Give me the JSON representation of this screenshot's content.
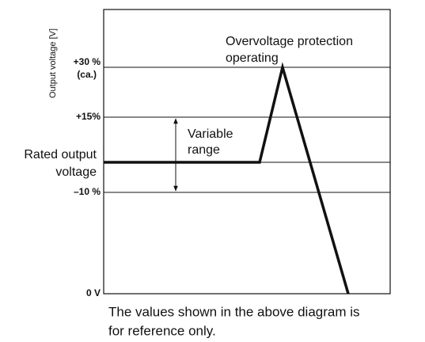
{
  "axis_title": "Output voltage [V]",
  "levels": [
    {
      "label": "+30 %",
      "note": "(ca.)"
    },
    {
      "label": "+15%"
    },
    {
      "label": "–10 %"
    },
    {
      "label": "0 V"
    }
  ],
  "rated_label": [
    "Rated output",
    "voltage"
  ],
  "annotations": {
    "protection": [
      "Overvoltage protection",
      "operating"
    ],
    "variable": [
      "Variable",
      "range"
    ]
  },
  "footer": [
    "The values shown in the above diagram is",
    "for reference only."
  ]
}
